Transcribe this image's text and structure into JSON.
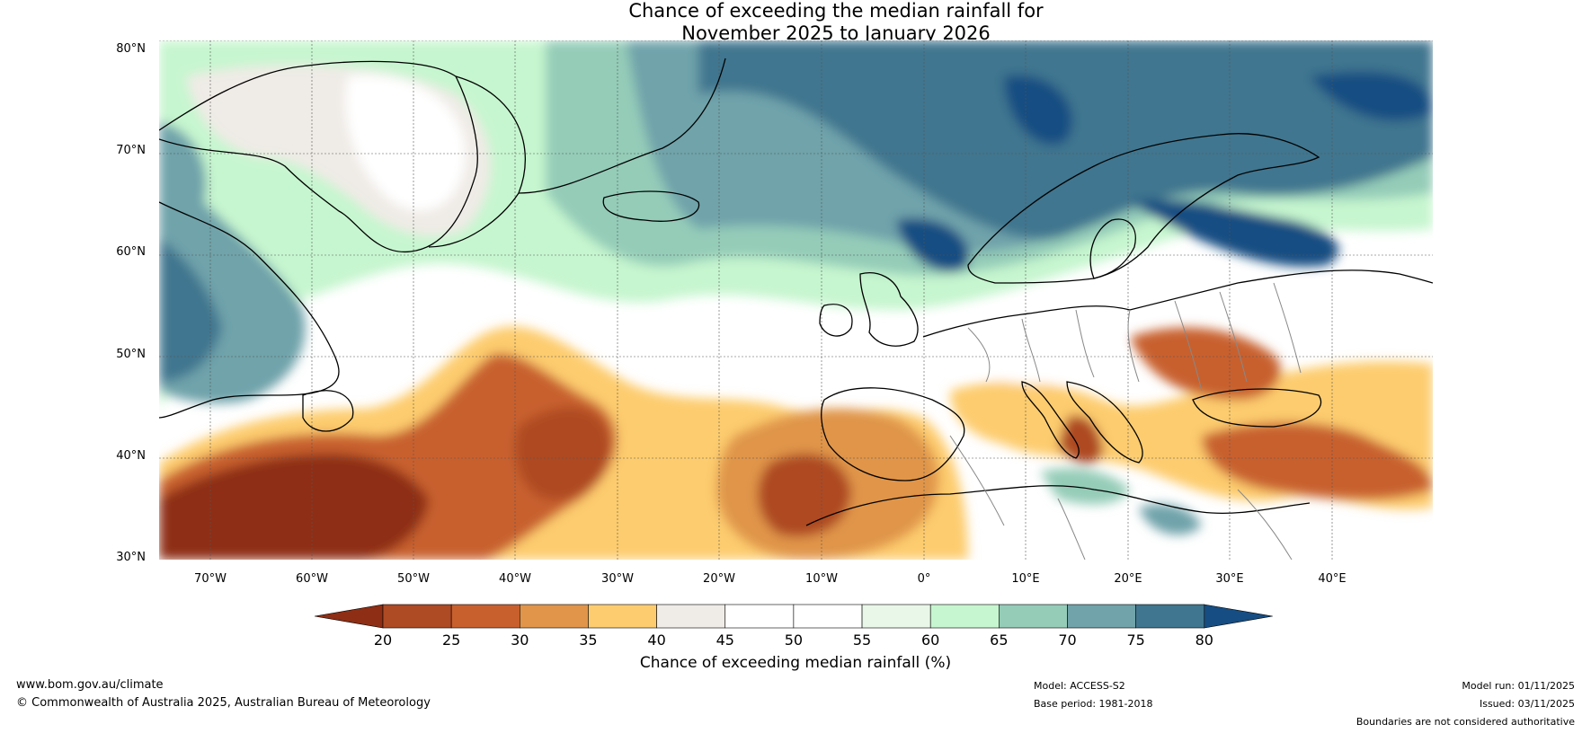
{
  "title": {
    "line1": "Chance of exceeding the median rainfall for",
    "line2": "November 2025 to January 2026"
  },
  "map": {
    "latitude_labels": [
      "80°N",
      "70°N",
      "60°N",
      "50°N",
      "40°N",
      "30°N"
    ],
    "longitude_labels": [
      "70°W",
      "60°W",
      "50°W",
      "40°W",
      "30°W",
      "20°W",
      "10°W",
      "0°",
      "10°E",
      "20°E",
      "30°E",
      "40°E"
    ],
    "region": "North Atlantic, Greenland, Europe and the Mediterranean"
  },
  "colorbar": {
    "ticks": [
      "20",
      "25",
      "30",
      "35",
      "40",
      "45",
      "50",
      "55",
      "60",
      "65",
      "70",
      "75",
      "80"
    ],
    "colors": [
      "#8e2e14",
      "#ae4a24",
      "#c8602e",
      "#e0954a",
      "#fdcc6e",
      "#efebe6",
      "#ffffff",
      "#ffffff",
      "#e8f7e8",
      "#c6f6cf",
      "#94ccb8",
      "#70a3aa",
      "#40768f",
      "#164d82"
    ],
    "label": "Chance of exceeding median rainfall (%)"
  },
  "footer": {
    "website": "www.bom.gov.au/climate",
    "copyright": "© Commonwealth of Australia 2025, Australian Bureau of Meteorology",
    "model": "Model: ACCESS-S2",
    "base_period": "Base period: 1981-2018",
    "model_run": "Model run: 01/11/2025",
    "issued": "Issued: 03/11/2025",
    "disclaimer": "Boundaries are not considered authoritative"
  }
}
